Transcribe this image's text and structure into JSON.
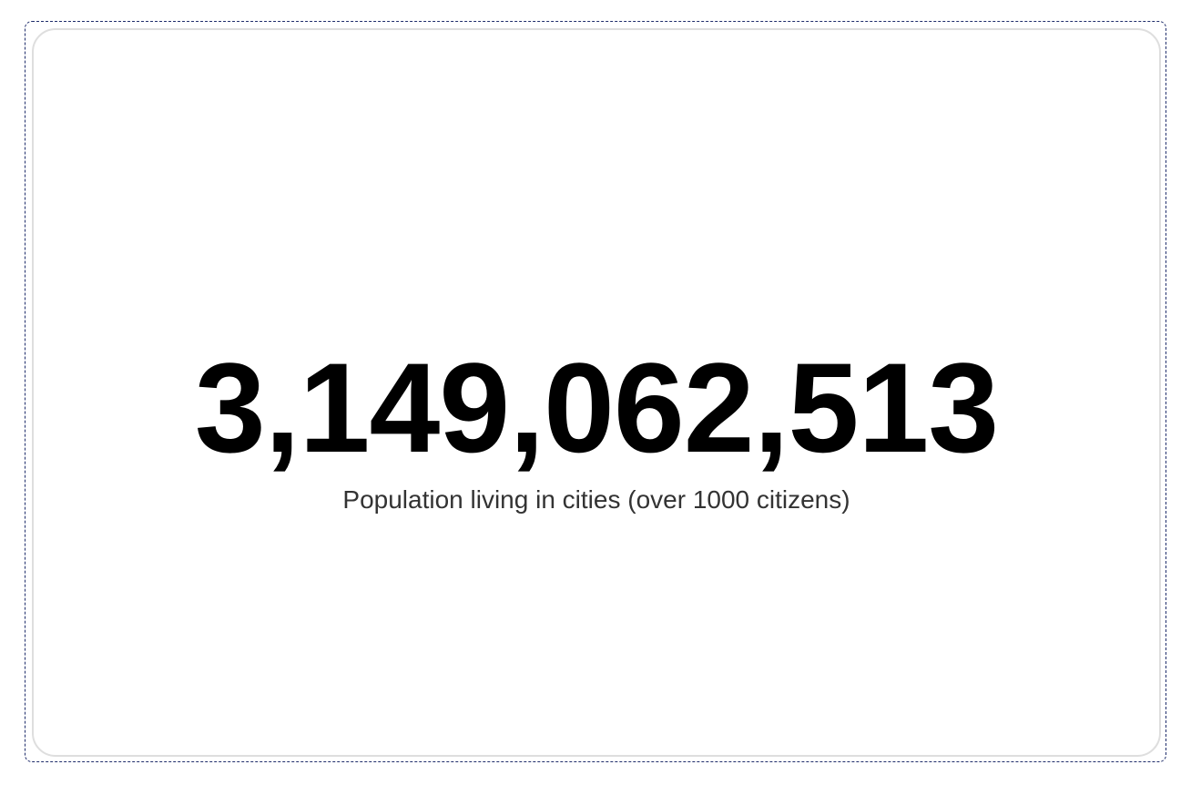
{
  "metric": {
    "value": "3,149,062,513",
    "label": "Population living in cities (over 1000 citizens)"
  },
  "colors": {
    "outline": "#1f2d6b",
    "card_border": "#dedede",
    "value": "#000000",
    "label": "#333333"
  }
}
